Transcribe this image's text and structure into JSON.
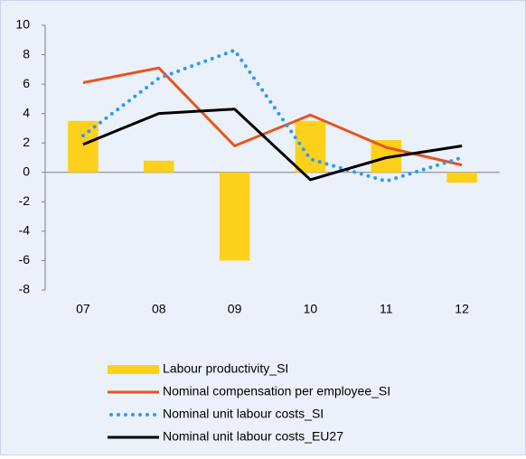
{
  "chart_data": {
    "type": "combo",
    "categories": [
      "07",
      "08",
      "09",
      "10",
      "11",
      "12"
    ],
    "ylim": [
      -8,
      10
    ],
    "yticks": [
      -8,
      -6,
      -4,
      -2,
      0,
      2,
      4,
      6,
      8,
      10
    ],
    "series": [
      {
        "name": "Labour productivity_SI",
        "type": "bar",
        "color": "#fdd01c",
        "values": [
          3.5,
          0.8,
          -6.0,
          3.5,
          2.2,
          -0.7
        ]
      },
      {
        "name": "Nominal compensation per employee_SI",
        "type": "line",
        "color": "#e8541c",
        "values": [
          6.1,
          7.1,
          1.8,
          3.9,
          1.7,
          0.5
        ]
      },
      {
        "name": "Nominal unit labour costs_SI",
        "type": "dotted",
        "color": "#3399ee",
        "values": [
          2.5,
          6.4,
          8.3,
          0.9,
          -0.6,
          1.0
        ]
      },
      {
        "name": "Nominal unit labour costs_EU27",
        "type": "line",
        "color": "#000000",
        "values": [
          1.9,
          4.0,
          4.3,
          -0.5,
          1.0,
          1.8
        ]
      }
    ]
  }
}
